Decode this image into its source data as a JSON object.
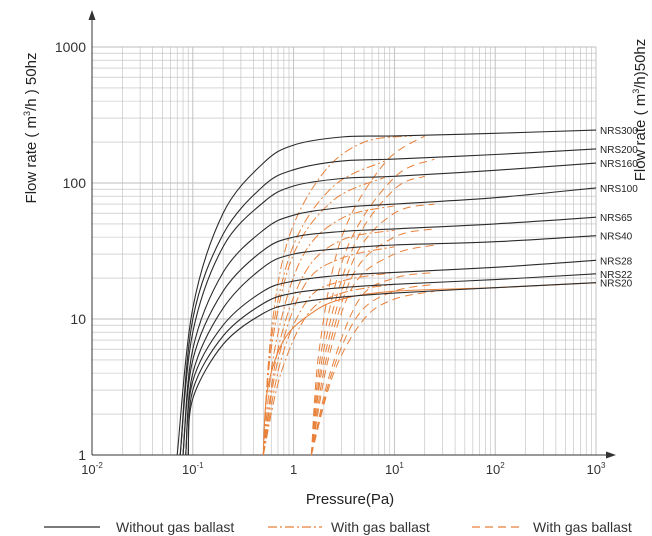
{
  "chart_data": {
    "type": "line",
    "xlabel": "Pressure(Pa)",
    "ylabel_left_prefix": "Flow rate ( m",
    "ylabel_left_sup": "3",
    "ylabel_left_suffix": "/h ) 50hz",
    "ylabel_right_prefix": "Flow rate ( m",
    "ylabel_right_sup": "3",
    "ylabel_right_suffix": "/h)50hz",
    "x_scale": "log",
    "y_scale": "log",
    "xlim": [
      0.01,
      1000
    ],
    "ylim": [
      1,
      1000
    ],
    "grid": true,
    "x_ticks": [
      {
        "value": 0.01,
        "base": "10",
        "exp": "-2"
      },
      {
        "value": 0.1,
        "base": "10",
        "exp": "-1"
      },
      {
        "value": 1,
        "base": "1",
        "exp": ""
      },
      {
        "value": 10,
        "base": "10",
        "exp": "1"
      },
      {
        "value": 100,
        "base": "10",
        "exp": "2"
      },
      {
        "value": 1000,
        "base": "10",
        "exp": "3"
      }
    ],
    "y_ticks": [
      {
        "value": 1,
        "label": "1"
      },
      {
        "value": 10,
        "label": "10"
      },
      {
        "value": 100,
        "label": "100"
      },
      {
        "value": 1000,
        "label": "1000"
      }
    ],
    "legend": [
      {
        "label": "Without gas ballast",
        "style": "solid",
        "color": "#2b2b2b"
      },
      {
        "label": "With gas ballast",
        "style": "dashdot",
        "color": "#e8813a"
      },
      {
        "label": "With gas ballast",
        "style": "dashed",
        "color": "#e8813a"
      }
    ],
    "colors": {
      "without": "#2b2b2b",
      "with": "#e8813a",
      "grid": "#bdbdbd"
    },
    "series": [
      {
        "name": "NRS300",
        "values": [
          {
            "x": 0.07,
            "y": 1
          },
          {
            "x": 0.1,
            "y": 12
          },
          {
            "x": 0.2,
            "y": 60
          },
          {
            "x": 0.5,
            "y": 140
          },
          {
            "x": 1,
            "y": 190
          },
          {
            "x": 3,
            "y": 218
          },
          {
            "x": 10,
            "y": 222
          },
          {
            "x": 100,
            "y": 232
          },
          {
            "x": 1000,
            "y": 245
          }
        ],
        "ballast_dashdot": [
          {
            "x": 0.5,
            "y": 1
          },
          {
            "x": 0.6,
            "y": 8
          },
          {
            "x": 0.9,
            "y": 40
          },
          {
            "x": 2,
            "y": 120
          },
          {
            "x": 5,
            "y": 200
          },
          {
            "x": 15,
            "y": 222
          }
        ],
        "ballast_dashed": [
          {
            "x": 1.5,
            "y": 1
          },
          {
            "x": 1.8,
            "y": 6
          },
          {
            "x": 3,
            "y": 40
          },
          {
            "x": 8,
            "y": 140
          },
          {
            "x": 20,
            "y": 222
          }
        ]
      },
      {
        "name": "NRS200",
        "values": [
          {
            "x": 0.075,
            "y": 1
          },
          {
            "x": 0.1,
            "y": 10
          },
          {
            "x": 0.2,
            "y": 42
          },
          {
            "x": 0.5,
            "y": 95
          },
          {
            "x": 1,
            "y": 125
          },
          {
            "x": 3,
            "y": 145
          },
          {
            "x": 10,
            "y": 150
          },
          {
            "x": 100,
            "y": 162
          },
          {
            "x": 1000,
            "y": 178
          }
        ],
        "ballast_dashdot": [
          {
            "x": 0.5,
            "y": 1
          },
          {
            "x": 0.6,
            "y": 7
          },
          {
            "x": 1,
            "y": 35
          },
          {
            "x": 2.5,
            "y": 95
          },
          {
            "x": 8,
            "y": 145
          }
        ],
        "ballast_dashed": [
          {
            "x": 1.5,
            "y": 1
          },
          {
            "x": 1.9,
            "y": 6
          },
          {
            "x": 3.5,
            "y": 35
          },
          {
            "x": 10,
            "y": 110
          },
          {
            "x": 25,
            "y": 150
          }
        ]
      },
      {
        "name": "NRS160",
        "values": [
          {
            "x": 0.075,
            "y": 1
          },
          {
            "x": 0.1,
            "y": 8
          },
          {
            "x": 0.2,
            "y": 34
          },
          {
            "x": 0.5,
            "y": 72
          },
          {
            "x": 1,
            "y": 95
          },
          {
            "x": 3,
            "y": 108
          },
          {
            "x": 10,
            "y": 112
          },
          {
            "x": 100,
            "y": 124
          },
          {
            "x": 1000,
            "y": 140
          }
        ],
        "ballast_dashdot": [
          {
            "x": 0.5,
            "y": 1
          },
          {
            "x": 0.6,
            "y": 6
          },
          {
            "x": 1,
            "y": 30
          },
          {
            "x": 2.5,
            "y": 75
          },
          {
            "x": 8,
            "y": 110
          }
        ],
        "ballast_dashed": [
          {
            "x": 1.5,
            "y": 1
          },
          {
            "x": 2,
            "y": 6
          },
          {
            "x": 4,
            "y": 35
          },
          {
            "x": 10,
            "y": 90
          },
          {
            "x": 20,
            "y": 112
          }
        ]
      },
      {
        "name": "NRS100",
        "values": [
          {
            "x": 0.08,
            "y": 1
          },
          {
            "x": 0.1,
            "y": 6
          },
          {
            "x": 0.2,
            "y": 22
          },
          {
            "x": 0.5,
            "y": 45
          },
          {
            "x": 1,
            "y": 58
          },
          {
            "x": 3,
            "y": 66
          },
          {
            "x": 10,
            "y": 70
          },
          {
            "x": 100,
            "y": 78
          },
          {
            "x": 1000,
            "y": 92
          }
        ],
        "ballast_dashdot": [
          {
            "x": 0.5,
            "y": 1
          },
          {
            "x": 0.65,
            "y": 6
          },
          {
            "x": 1.2,
            "y": 28
          },
          {
            "x": 3,
            "y": 55
          },
          {
            "x": 10,
            "y": 68
          }
        ],
        "ballast_dashed": [
          {
            "x": 1.5,
            "y": 1
          },
          {
            "x": 2,
            "y": 5
          },
          {
            "x": 4,
            "y": 28
          },
          {
            "x": 10,
            "y": 60
          },
          {
            "x": 25,
            "y": 70
          }
        ]
      },
      {
        "name": "NRS65",
        "values": [
          {
            "x": 0.08,
            "y": 1
          },
          {
            "x": 0.1,
            "y": 5
          },
          {
            "x": 0.2,
            "y": 16
          },
          {
            "x": 0.5,
            "y": 32
          },
          {
            "x": 1,
            "y": 40
          },
          {
            "x": 3,
            "y": 44
          },
          {
            "x": 10,
            "y": 46
          },
          {
            "x": 100,
            "y": 50
          },
          {
            "x": 1000,
            "y": 56
          }
        ],
        "ballast_dashdot": [
          {
            "x": 0.5,
            "y": 1
          },
          {
            "x": 0.7,
            "y": 6
          },
          {
            "x": 1.3,
            "y": 22
          },
          {
            "x": 3,
            "y": 38
          },
          {
            "x": 10,
            "y": 45
          }
        ],
        "ballast_dashed": [
          {
            "x": 1.5,
            "y": 1
          },
          {
            "x": 2.1,
            "y": 5
          },
          {
            "x": 4,
            "y": 22
          },
          {
            "x": 10,
            "y": 40
          },
          {
            "x": 25,
            "y": 46
          }
        ]
      },
      {
        "name": "NRS40",
        "values": [
          {
            "x": 0.085,
            "y": 1
          },
          {
            "x": 0.1,
            "y": 4
          },
          {
            "x": 0.2,
            "y": 12
          },
          {
            "x": 0.5,
            "y": 24
          },
          {
            "x": 1,
            "y": 30
          },
          {
            "x": 3,
            "y": 33
          },
          {
            "x": 10,
            "y": 35
          },
          {
            "x": 100,
            "y": 37
          },
          {
            "x": 1000,
            "y": 41
          }
        ],
        "ballast_dashdot": [
          {
            "x": 0.5,
            "y": 1
          },
          {
            "x": 0.7,
            "y": 5
          },
          {
            "x": 1.3,
            "y": 18
          },
          {
            "x": 3,
            "y": 28
          },
          {
            "x": 10,
            "y": 34
          }
        ],
        "ballast_dashed": [
          {
            "x": 1.5,
            "y": 1
          },
          {
            "x": 2.2,
            "y": 5
          },
          {
            "x": 4,
            "y": 18
          },
          {
            "x": 10,
            "y": 30
          },
          {
            "x": 25,
            "y": 35
          }
        ]
      },
      {
        "name": "NRS28",
        "values": [
          {
            "x": 0.085,
            "y": 1
          },
          {
            "x": 0.1,
            "y": 3.5
          },
          {
            "x": 0.2,
            "y": 9
          },
          {
            "x": 0.5,
            "y": 16
          },
          {
            "x": 1,
            "y": 19
          },
          {
            "x": 3,
            "y": 21
          },
          {
            "x": 10,
            "y": 22
          },
          {
            "x": 100,
            "y": 24
          },
          {
            "x": 1000,
            "y": 27
          }
        ],
        "ballast_dashdot": [
          {
            "x": 0.5,
            "y": 1
          },
          {
            "x": 0.75,
            "y": 5
          },
          {
            "x": 1.4,
            "y": 14
          },
          {
            "x": 3,
            "y": 19
          },
          {
            "x": 10,
            "y": 22
          }
        ],
        "ballast_dashed": [
          {
            "x": 1.5,
            "y": 1
          },
          {
            "x": 2.3,
            "y": 4
          },
          {
            "x": 4.5,
            "y": 14
          },
          {
            "x": 10,
            "y": 20
          },
          {
            "x": 25,
            "y": 22
          }
        ]
      },
      {
        "name": "NRS22",
        "values": [
          {
            "x": 0.09,
            "y": 1
          },
          {
            "x": 0.1,
            "y": 3
          },
          {
            "x": 0.2,
            "y": 7.5
          },
          {
            "x": 0.5,
            "y": 13
          },
          {
            "x": 1,
            "y": 15.5
          },
          {
            "x": 3,
            "y": 17
          },
          {
            "x": 10,
            "y": 18
          },
          {
            "x": 100,
            "y": 19.5
          },
          {
            "x": 1000,
            "y": 21.5
          }
        ],
        "ballast_dashdot": [
          {
            "x": 0.5,
            "y": 1
          },
          {
            "x": 0.75,
            "y": 4
          },
          {
            "x": 1.4,
            "y": 11
          },
          {
            "x": 3,
            "y": 15.5
          },
          {
            "x": 10,
            "y": 18
          }
        ],
        "ballast_dashed": [
          {
            "x": 1.5,
            "y": 1
          },
          {
            "x": 2.4,
            "y": 4
          },
          {
            "x": 4.5,
            "y": 11
          },
          {
            "x": 10,
            "y": 16
          },
          {
            "x": 25,
            "y": 18
          }
        ]
      },
      {
        "name": "NRS20",
        "values": [
          {
            "x": 0.09,
            "y": 1
          },
          {
            "x": 0.1,
            "y": 2.6
          },
          {
            "x": 0.2,
            "y": 6.5
          },
          {
            "x": 0.5,
            "y": 11
          },
          {
            "x": 1,
            "y": 13
          },
          {
            "x": 3,
            "y": 14.5
          },
          {
            "x": 10,
            "y": 15.5
          },
          {
            "x": 100,
            "y": 17
          },
          {
            "x": 1000,
            "y": 18.5
          }
        ],
        "ballast_solid_orange": [
          {
            "x": 0.5,
            "y": 1
          },
          {
            "x": 0.55,
            "y": 3
          },
          {
            "x": 0.8,
            "y": 7
          },
          {
            "x": 1.5,
            "y": 11
          },
          {
            "x": 3,
            "y": 14
          },
          {
            "x": 10,
            "y": 16
          },
          {
            "x": 100,
            "y": 17
          },
          {
            "x": 1000,
            "y": 18.5
          }
        ],
        "ballast_dashed": [
          {
            "x": 1.5,
            "y": 1
          },
          {
            "x": 2.5,
            "y": 4
          },
          {
            "x": 5,
            "y": 10
          },
          {
            "x": 10,
            "y": 14
          },
          {
            "x": 25,
            "y": 16
          }
        ]
      }
    ]
  }
}
